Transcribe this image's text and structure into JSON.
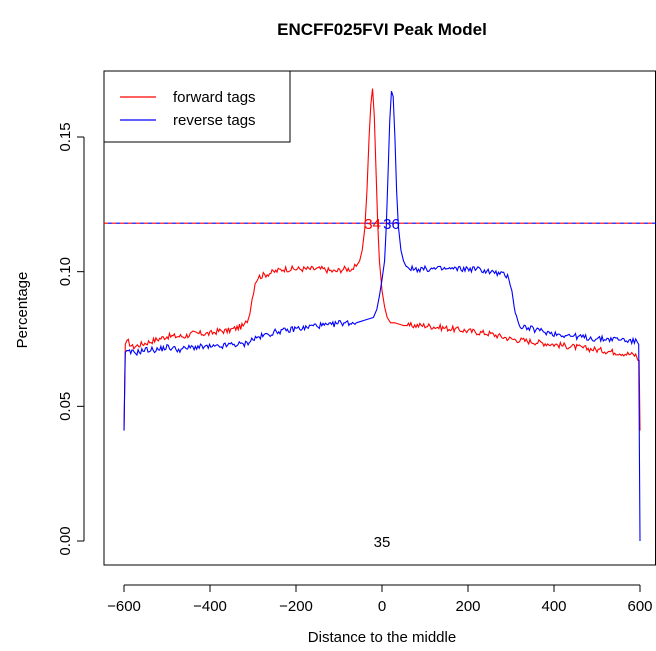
{
  "chart_data": {
    "type": "line",
    "title": "ENCFF025FVI Peak Model",
    "xlabel": "Distance to the middle",
    "ylabel": "Percentage",
    "xlim": [
      -620,
      620
    ],
    "ylim": [
      -0.005,
      0.175
    ],
    "x_ticks": [
      -600,
      -400,
      -200,
      0,
      200,
      400,
      600
    ],
    "x_tick_labels": [
      "−600",
      "−400",
      "−200",
      "0",
      "200",
      "400",
      "600"
    ],
    "y_ticks": [
      0.0,
      0.05,
      0.1,
      0.15
    ],
    "y_tick_labels": [
      "0.00",
      "0.05",
      "0.10",
      "0.15"
    ],
    "legend": {
      "position": "top-left",
      "entries": [
        {
          "label": "forward tags",
          "color": "#ff0000"
        },
        {
          "label": "reverse tags",
          "color": "#0000ff"
        }
      ]
    },
    "series": [
      {
        "name": "forward tags",
        "color": "#ff0000",
        "points": [
          [
            -600,
            0.041
          ],
          [
            -597,
            0.073
          ],
          [
            -590,
            0.074
          ],
          [
            -580,
            0.072
          ],
          [
            -560,
            0.073
          ],
          [
            -540,
            0.074
          ],
          [
            -520,
            0.075
          ],
          [
            -500,
            0.076
          ],
          [
            -480,
            0.076
          ],
          [
            -460,
            0.076
          ],
          [
            -440,
            0.077
          ],
          [
            -420,
            0.077
          ],
          [
            -400,
            0.077
          ],
          [
            -380,
            0.078
          ],
          [
            -360,
            0.078
          ],
          [
            -340,
            0.079
          ],
          [
            -320,
            0.08
          ],
          [
            -310,
            0.083
          ],
          [
            -302,
            0.09
          ],
          [
            -295,
            0.096
          ],
          [
            -288,
            0.098
          ],
          [
            -270,
            0.099
          ],
          [
            -250,
            0.1
          ],
          [
            -230,
            0.101
          ],
          [
            -200,
            0.101
          ],
          [
            -170,
            0.101
          ],
          [
            -140,
            0.101
          ],
          [
            -110,
            0.1
          ],
          [
            -90,
            0.101
          ],
          [
            -70,
            0.101
          ],
          [
            -60,
            0.102
          ],
          [
            -52,
            0.104
          ],
          [
            -46,
            0.108
          ],
          [
            -40,
            0.116
          ],
          [
            -35,
            0.13
          ],
          [
            -30,
            0.15
          ],
          [
            -26,
            0.162
          ],
          [
            -22,
            0.168
          ],
          [
            -18,
            0.158
          ],
          [
            -14,
            0.138
          ],
          [
            -10,
            0.118
          ],
          [
            -6,
            0.104
          ],
          [
            0,
            0.093
          ],
          [
            6,
            0.087
          ],
          [
            12,
            0.083
          ],
          [
            20,
            0.081
          ],
          [
            30,
            0.081
          ],
          [
            50,
            0.08
          ],
          [
            70,
            0.08
          ],
          [
            100,
            0.08
          ],
          [
            150,
            0.079
          ],
          [
            200,
            0.078
          ],
          [
            250,
            0.077
          ],
          [
            300,
            0.075
          ],
          [
            350,
            0.074
          ],
          [
            400,
            0.073
          ],
          [
            450,
            0.072
          ],
          [
            500,
            0.071
          ],
          [
            550,
            0.07
          ],
          [
            590,
            0.069
          ],
          [
            598,
            0.067
          ],
          [
            600,
            0.041
          ]
        ]
      },
      {
        "name": "reverse tags",
        "color": "#0000ff",
        "points": [
          [
            -600,
            0.041
          ],
          [
            -597,
            0.07
          ],
          [
            -590,
            0.07
          ],
          [
            -570,
            0.07
          ],
          [
            -550,
            0.071
          ],
          [
            -520,
            0.071
          ],
          [
            -500,
            0.072
          ],
          [
            -470,
            0.071
          ],
          [
            -440,
            0.072
          ],
          [
            -410,
            0.072
          ],
          [
            -380,
            0.072
          ],
          [
            -350,
            0.073
          ],
          [
            -320,
            0.073
          ],
          [
            -300,
            0.075
          ],
          [
            -280,
            0.076
          ],
          [
            -260,
            0.077
          ],
          [
            -240,
            0.078
          ],
          [
            -220,
            0.078
          ],
          [
            -200,
            0.079
          ],
          [
            -180,
            0.079
          ],
          [
            -160,
            0.08
          ],
          [
            -140,
            0.08
          ],
          [
            -120,
            0.08
          ],
          [
            -100,
            0.081
          ],
          [
            -80,
            0.081
          ],
          [
            -60,
            0.081
          ],
          [
            -40,
            0.082
          ],
          [
            -20,
            0.083
          ],
          [
            -12,
            0.086
          ],
          [
            -6,
            0.091
          ],
          [
            0,
            0.097
          ],
          [
            6,
            0.104
          ],
          [
            10,
            0.117
          ],
          [
            14,
            0.136
          ],
          [
            18,
            0.156
          ],
          [
            22,
            0.167
          ],
          [
            26,
            0.165
          ],
          [
            30,
            0.15
          ],
          [
            34,
            0.13
          ],
          [
            38,
            0.117
          ],
          [
            44,
            0.108
          ],
          [
            50,
            0.104
          ],
          [
            56,
            0.102
          ],
          [
            70,
            0.101
          ],
          [
            100,
            0.101
          ],
          [
            130,
            0.101
          ],
          [
            160,
            0.101
          ],
          [
            190,
            0.101
          ],
          [
            220,
            0.101
          ],
          [
            250,
            0.1
          ],
          [
            280,
            0.099
          ],
          [
            295,
            0.098
          ],
          [
            302,
            0.093
          ],
          [
            310,
            0.085
          ],
          [
            318,
            0.08
          ],
          [
            340,
            0.079
          ],
          [
            370,
            0.078
          ],
          [
            400,
            0.077
          ],
          [
            450,
            0.076
          ],
          [
            500,
            0.075
          ],
          [
            550,
            0.075
          ],
          [
            590,
            0.074
          ],
          [
            597,
            0.073
          ],
          [
            600,
            0.0
          ]
        ]
      }
    ],
    "reference_lines": [
      {
        "type": "horizontal",
        "y": 0.118,
        "colors": [
          "#ff0000",
          "#0000ff"
        ],
        "style": "dashed"
      }
    ],
    "annotations": [
      {
        "text": "34",
        "x": -22,
        "y": 0.118,
        "color": "#ff0000"
      },
      {
        "text": "36",
        "x": 22,
        "y": 0.118,
        "color": "#0000ff"
      },
      {
        "text": "35",
        "x": 0,
        "y": 0.0,
        "color": "#000000"
      }
    ]
  }
}
